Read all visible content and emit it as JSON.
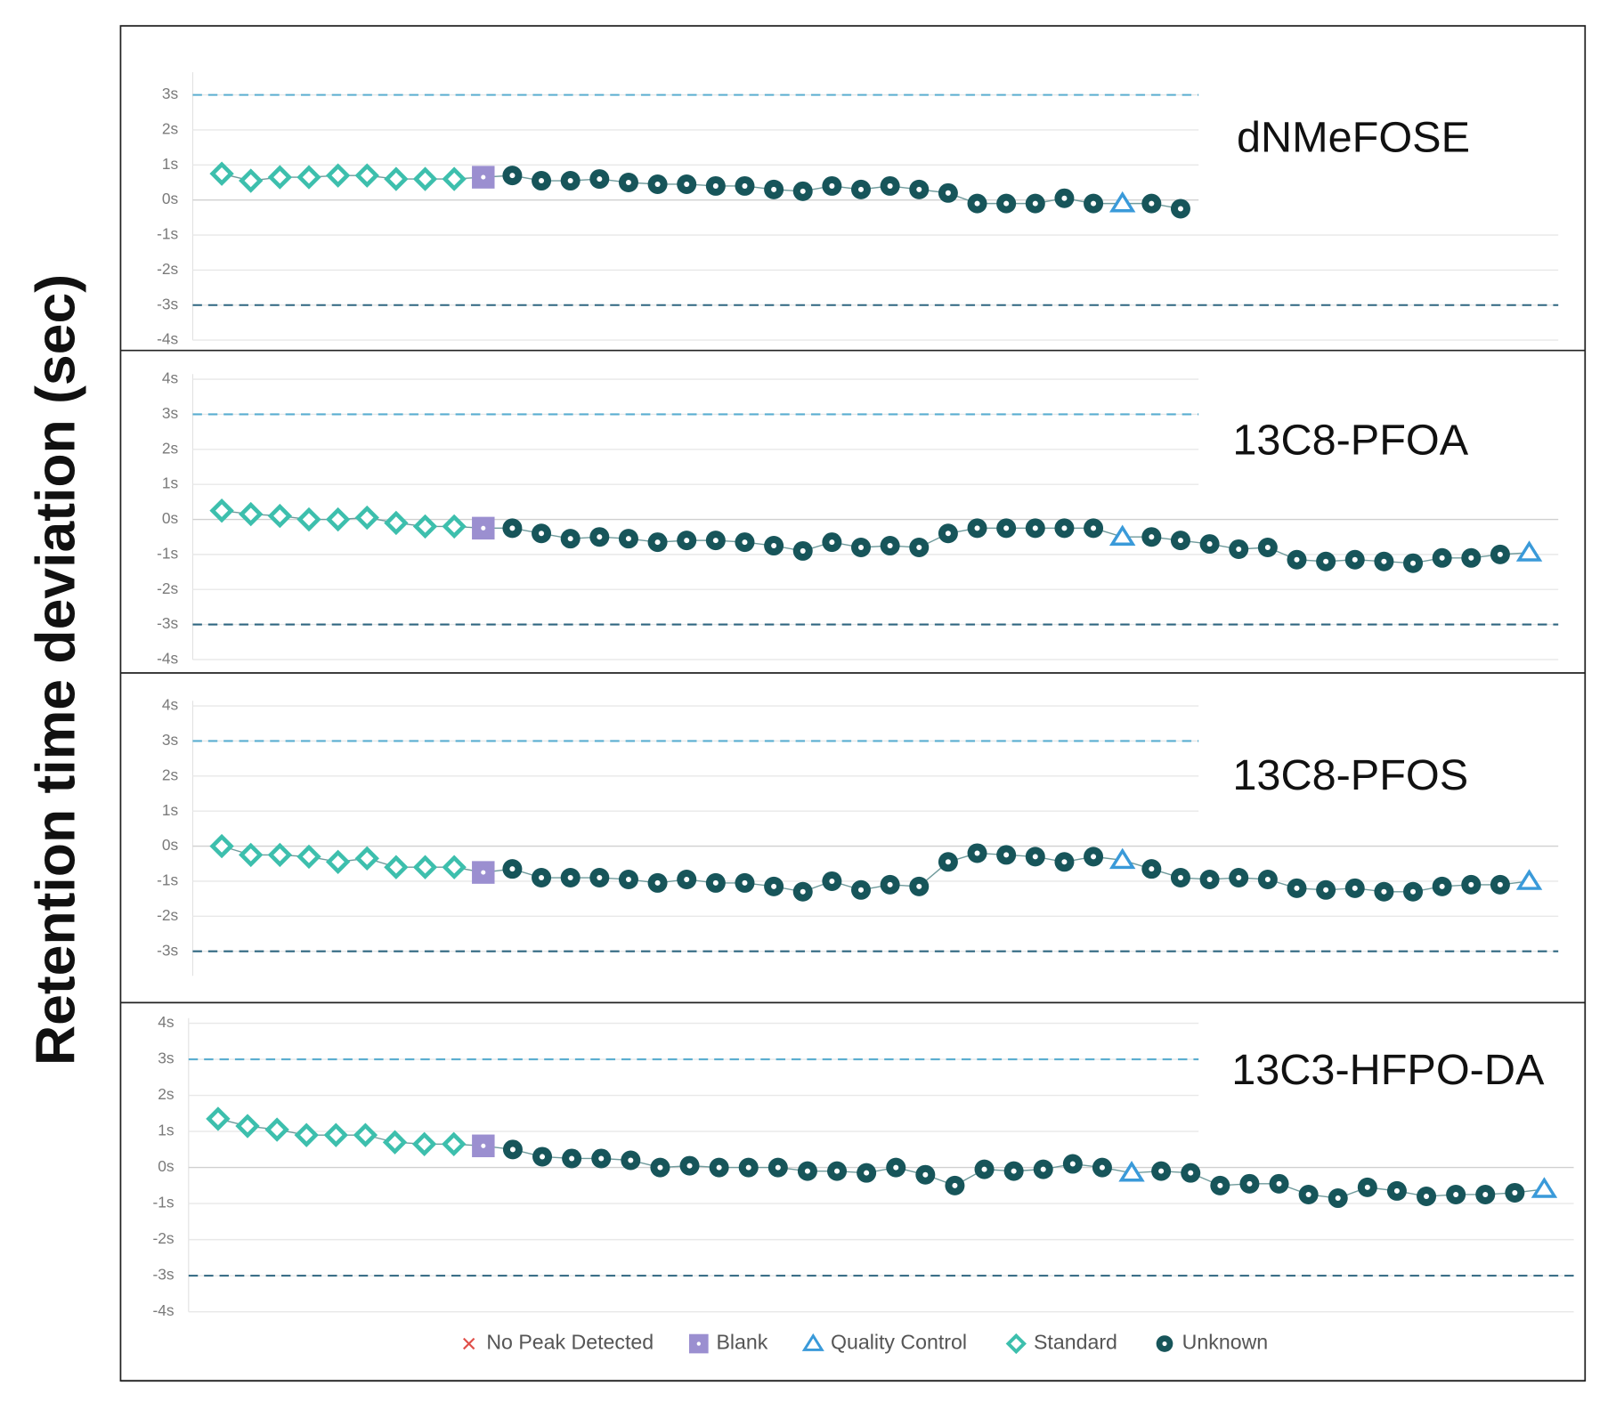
{
  "y_axis_label": "Retention time deviation (sec)",
  "legend": [
    {
      "name": "No Peak Detected",
      "color": "#e0504a",
      "marker": "x"
    },
    {
      "name": "Blank",
      "color": "#9b8fd0",
      "marker": "square"
    },
    {
      "name": "Quality Control",
      "color": "#3a9ad9",
      "marker": "triangle"
    },
    {
      "name": "Standard",
      "color": "#3dbfad",
      "marker": "diamond"
    },
    {
      "name": "Unknown",
      "color": "#17555a",
      "marker": "circle"
    }
  ],
  "chart_data": [
    {
      "type": "line",
      "title": "dNMeFOSE",
      "xlim": [
        0,
        47
      ],
      "ylim": [
        -4,
        3.5
      ],
      "yticks": [
        {
          "value": 3,
          "label": "3s"
        },
        {
          "value": 2,
          "label": "2s"
        },
        {
          "value": 1,
          "label": "1s"
        },
        {
          "value": 0,
          "label": "0s"
        },
        {
          "value": -1,
          "label": "-1s"
        },
        {
          "value": -2,
          "label": "-2s"
        },
        {
          "value": -3,
          "label": "-3s"
        },
        {
          "value": -4,
          "label": "-4s"
        }
      ],
      "grid": true,
      "reference_lines": [
        {
          "value": 3,
          "color": "#5aaed0"
        },
        {
          "value": -3,
          "color": "#2f6680"
        }
      ],
      "x": [
        1,
        2,
        3,
        4,
        5,
        6,
        7,
        8,
        9,
        10,
        11,
        12,
        13,
        14,
        15,
        16,
        17,
        18,
        19,
        20,
        21,
        22,
        23,
        24,
        25,
        26,
        27,
        28,
        29,
        30,
        31,
        32,
        33,
        34
      ],
      "values": [
        0.75,
        0.55,
        0.65,
        0.65,
        0.7,
        0.7,
        0.6,
        0.6,
        0.6,
        0.65,
        0.7,
        0.55,
        0.55,
        0.6,
        0.5,
        0.45,
        0.45,
        0.4,
        0.4,
        0.3,
        0.25,
        0.4,
        0.3,
        0.4,
        0.3,
        0.2,
        -0.1,
        -0.1,
        -0.1,
        0.05,
        -0.1,
        -0.1,
        -0.1,
        -0.25
      ],
      "sample_types": [
        "Standard",
        "Standard",
        "Standard",
        "Standard",
        "Standard",
        "Standard",
        "Standard",
        "Standard",
        "Standard",
        "Blank",
        "Unknown",
        "Unknown",
        "Unknown",
        "Unknown",
        "Unknown",
        "Unknown",
        "Unknown",
        "Unknown",
        "Unknown",
        "Unknown",
        "Unknown",
        "Unknown",
        "Unknown",
        "Unknown",
        "Unknown",
        "Unknown",
        "Unknown",
        "Unknown",
        "Unknown",
        "Unknown",
        "Unknown",
        "Quality Control",
        "Unknown",
        "Unknown"
      ]
    },
    {
      "type": "line",
      "title": "13C8-PFOA",
      "xlim": [
        0,
        47
      ],
      "ylim": [
        -4,
        4
      ],
      "yticks": [
        {
          "value": 4,
          "label": "4s"
        },
        {
          "value": 3,
          "label": "3s"
        },
        {
          "value": 2,
          "label": "2s"
        },
        {
          "value": 1,
          "label": "1s"
        },
        {
          "value": 0,
          "label": "0s"
        },
        {
          "value": -1,
          "label": "-1s"
        },
        {
          "value": -2,
          "label": "-2s"
        },
        {
          "value": -3,
          "label": "-3s"
        },
        {
          "value": -4,
          "label": "-4s"
        }
      ],
      "grid": true,
      "reference_lines": [
        {
          "value": 3,
          "color": "#5aaed0"
        },
        {
          "value": -3,
          "color": "#2f6680"
        }
      ],
      "x": [
        1,
        2,
        3,
        4,
        5,
        6,
        7,
        8,
        9,
        10,
        11,
        12,
        13,
        14,
        15,
        16,
        17,
        18,
        19,
        20,
        21,
        22,
        23,
        24,
        25,
        26,
        27,
        28,
        29,
        30,
        31,
        32,
        33,
        34,
        35,
        36,
        37,
        38,
        39,
        40,
        41,
        42,
        43,
        44,
        45,
        46
      ],
      "values": [
        0.25,
        0.15,
        0.1,
        0,
        0,
        0.05,
        -0.1,
        -0.2,
        -0.2,
        -0.25,
        -0.25,
        -0.4,
        -0.55,
        -0.5,
        -0.55,
        -0.65,
        -0.6,
        -0.6,
        -0.65,
        -0.75,
        -0.9,
        -0.65,
        -0.8,
        -0.75,
        -0.8,
        -0.4,
        -0.25,
        -0.25,
        -0.25,
        -0.25,
        -0.25,
        -0.5,
        -0.5,
        -0.6,
        -0.7,
        -0.85,
        -0.8,
        -1.15,
        -1.2,
        -1.15,
        -1.2,
        -1.25,
        -1.1,
        -1.1,
        -1.0,
        -0.95
      ],
      "sample_types": [
        "Standard",
        "Standard",
        "Standard",
        "Standard",
        "Standard",
        "Standard",
        "Standard",
        "Standard",
        "Standard",
        "Blank",
        "Unknown",
        "Unknown",
        "Unknown",
        "Unknown",
        "Unknown",
        "Unknown",
        "Unknown",
        "Unknown",
        "Unknown",
        "Unknown",
        "Unknown",
        "Unknown",
        "Unknown",
        "Unknown",
        "Unknown",
        "Unknown",
        "Unknown",
        "Unknown",
        "Unknown",
        "Unknown",
        "Unknown",
        "Quality Control",
        "Unknown",
        "Unknown",
        "Unknown",
        "Unknown",
        "Unknown",
        "Unknown",
        "Unknown",
        "Unknown",
        "Unknown",
        "Unknown",
        "Unknown",
        "Unknown",
        "Unknown",
        "Quality Control"
      ]
    },
    {
      "type": "line",
      "title": "13C8-PFOS",
      "xlim": [
        0,
        47
      ],
      "ylim": [
        -3.7,
        4
      ],
      "yticks": [
        {
          "value": 4,
          "label": "4s"
        },
        {
          "value": 3,
          "label": "3s"
        },
        {
          "value": 2,
          "label": "2s"
        },
        {
          "value": 1,
          "label": "1s"
        },
        {
          "value": 0,
          "label": "0s"
        },
        {
          "value": -1,
          "label": "-1s"
        },
        {
          "value": -2,
          "label": "-2s"
        },
        {
          "value": -3,
          "label": "-3s"
        }
      ],
      "grid": true,
      "reference_lines": [
        {
          "value": 3,
          "color": "#5aaed0"
        },
        {
          "value": -3,
          "color": "#2f6680"
        }
      ],
      "x": [
        1,
        2,
        3,
        4,
        5,
        6,
        7,
        8,
        9,
        10,
        11,
        12,
        13,
        14,
        15,
        16,
        17,
        18,
        19,
        20,
        21,
        22,
        23,
        24,
        25,
        26,
        27,
        28,
        29,
        30,
        31,
        32,
        33,
        34,
        35,
        36,
        37,
        38,
        39,
        40,
        41,
        42,
        43,
        44,
        45,
        46
      ],
      "values": [
        0,
        -0.25,
        -0.25,
        -0.3,
        -0.45,
        -0.35,
        -0.6,
        -0.6,
        -0.6,
        -0.75,
        -0.65,
        -0.9,
        -0.9,
        -0.9,
        -0.95,
        -1.05,
        -0.95,
        -1.05,
        -1.05,
        -1.15,
        -1.3,
        -1.0,
        -1.25,
        -1.1,
        -1.15,
        -0.45,
        -0.2,
        -0.25,
        -0.3,
        -0.45,
        -0.3,
        -0.4,
        -0.65,
        -0.9,
        -0.95,
        -0.9,
        -0.95,
        -1.2,
        -1.25,
        -1.2,
        -1.3,
        -1.3,
        -1.15,
        -1.1,
        -1.1,
        -1.0
      ],
      "sample_types": [
        "Standard",
        "Standard",
        "Standard",
        "Standard",
        "Standard",
        "Standard",
        "Standard",
        "Standard",
        "Standard",
        "Blank",
        "Unknown",
        "Unknown",
        "Unknown",
        "Unknown",
        "Unknown",
        "Unknown",
        "Unknown",
        "Unknown",
        "Unknown",
        "Unknown",
        "Unknown",
        "Unknown",
        "Unknown",
        "Unknown",
        "Unknown",
        "Unknown",
        "Unknown",
        "Unknown",
        "Unknown",
        "Unknown",
        "Unknown",
        "Quality Control",
        "Unknown",
        "Unknown",
        "Unknown",
        "Unknown",
        "Unknown",
        "Unknown",
        "Unknown",
        "Unknown",
        "Unknown",
        "Unknown",
        "Unknown",
        "Unknown",
        "Unknown",
        "Quality Control"
      ]
    },
    {
      "type": "line",
      "title": "13C3-HFPO-DA",
      "xlim": [
        0,
        47
      ],
      "ylim": [
        -4,
        4
      ],
      "yticks": [
        {
          "value": 4,
          "label": "4s"
        },
        {
          "value": 3,
          "label": "3s"
        },
        {
          "value": 2,
          "label": "2s"
        },
        {
          "value": 1,
          "label": "1s"
        },
        {
          "value": 0,
          "label": "0s"
        },
        {
          "value": -1,
          "label": "-1s"
        },
        {
          "value": -2,
          "label": "-2s"
        },
        {
          "value": -3,
          "label": "-3s"
        },
        {
          "value": -4,
          "label": "-4s"
        }
      ],
      "grid": true,
      "reference_lines": [
        {
          "value": 3,
          "color": "#5aaed0"
        },
        {
          "value": -3,
          "color": "#2f6680"
        }
      ],
      "x": [
        1,
        2,
        3,
        4,
        5,
        6,
        7,
        8,
        9,
        10,
        11,
        12,
        13,
        14,
        15,
        16,
        17,
        18,
        19,
        20,
        21,
        22,
        23,
        24,
        25,
        26,
        27,
        28,
        29,
        30,
        31,
        32,
        33,
        34,
        35,
        36,
        37,
        38,
        39,
        40,
        41,
        42,
        43,
        44,
        45,
        46
      ],
      "values": [
        1.35,
        1.15,
        1.05,
        0.9,
        0.9,
        0.9,
        0.7,
        0.65,
        0.65,
        0.6,
        0.5,
        0.3,
        0.25,
        0.25,
        0.2,
        0,
        0.05,
        0,
        0,
        0,
        -0.1,
        -0.1,
        -0.15,
        0,
        -0.2,
        -0.5,
        -0.05,
        -0.1,
        -0.05,
        0.1,
        0,
        -0.15,
        -0.1,
        -0.15,
        -0.5,
        -0.45,
        -0.45,
        -0.75,
        -0.85,
        -0.55,
        -0.65,
        -0.8,
        -0.75,
        -0.75,
        -0.7,
        -0.6
      ],
      "sample_types": [
        "Standard",
        "Standard",
        "Standard",
        "Standard",
        "Standard",
        "Standard",
        "Standard",
        "Standard",
        "Standard",
        "Blank",
        "Unknown",
        "Unknown",
        "Unknown",
        "Unknown",
        "Unknown",
        "Unknown",
        "Unknown",
        "Unknown",
        "Unknown",
        "Unknown",
        "Unknown",
        "Unknown",
        "Unknown",
        "Unknown",
        "Unknown",
        "Unknown",
        "Unknown",
        "Unknown",
        "Unknown",
        "Unknown",
        "Unknown",
        "Quality Control",
        "Unknown",
        "Unknown",
        "Unknown",
        "Unknown",
        "Unknown",
        "Unknown",
        "Unknown",
        "Unknown",
        "Unknown",
        "Unknown",
        "Unknown",
        "Unknown",
        "Unknown",
        "Quality Control"
      ]
    }
  ]
}
